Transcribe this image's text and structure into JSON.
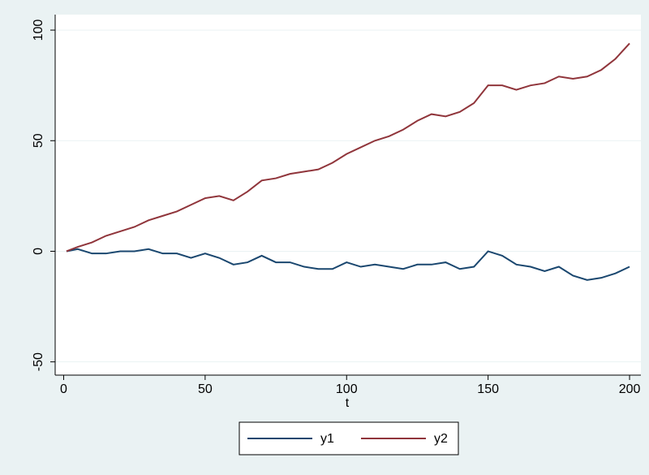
{
  "chart_data": {
    "type": "line",
    "x_label": "t",
    "x": [
      1,
      5,
      10,
      15,
      20,
      25,
      30,
      35,
      40,
      45,
      50,
      55,
      60,
      65,
      70,
      75,
      80,
      85,
      90,
      95,
      100,
      105,
      110,
      115,
      120,
      125,
      130,
      135,
      140,
      145,
      150,
      155,
      160,
      165,
      170,
      175,
      180,
      185,
      190,
      195,
      200
    ],
    "series": [
      {
        "name": "y1",
        "color": "#1a476f",
        "values": [
          0,
          1,
          -1,
          -1,
          0,
          0,
          1,
          -1,
          -1,
          -3,
          -1,
          -3,
          -6,
          -5,
          -2,
          -5,
          -5,
          -7,
          -8,
          -8,
          -5,
          -7,
          -6,
          -7,
          -8,
          -6,
          -6,
          -5,
          -8,
          -7,
          0,
          -2,
          -6,
          -7,
          -9,
          -7,
          -11,
          -13,
          -12,
          -10,
          -7
        ]
      },
      {
        "name": "y2",
        "color": "#90353b",
        "values": [
          0,
          2,
          4,
          7,
          9,
          11,
          14,
          16,
          18,
          21,
          24,
          25,
          23,
          27,
          32,
          33,
          35,
          36,
          37,
          40,
          44,
          47,
          50,
          52,
          55,
          59,
          62,
          61,
          63,
          67,
          75,
          75,
          73,
          75,
          76,
          79,
          78,
          79,
          82,
          87,
          94
        ]
      }
    ],
    "xlim": [
      -3,
      204
    ],
    "ylim": [
      -56,
      107
    ],
    "xticks": [
      0,
      50,
      100,
      150,
      200
    ],
    "yticks": [
      -50,
      0,
      50,
      100
    ],
    "grid": true
  }
}
